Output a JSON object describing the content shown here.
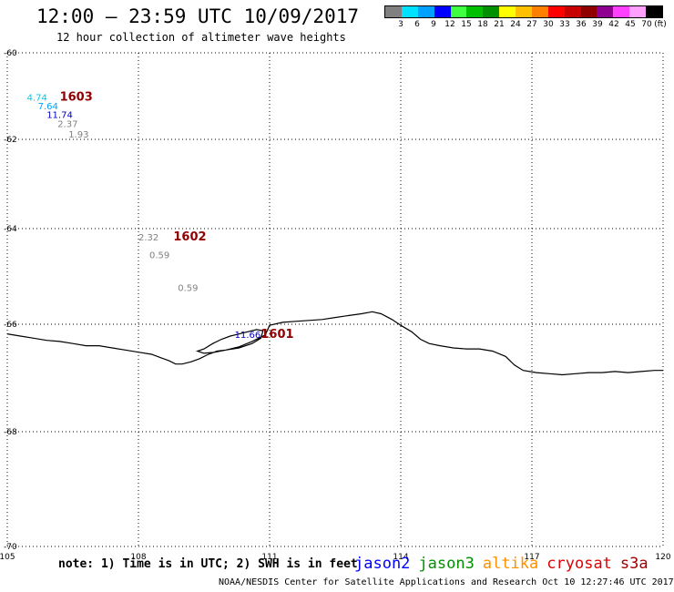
{
  "header": {
    "title": "12:00 – 23:59 UTC 10/09/2017",
    "subtitle": "12 hour collection of altimeter wave heights"
  },
  "legend": {
    "colors": [
      "#808080",
      "#00e0ff",
      "#00a0ff",
      "#0000ff",
      "#40ff40",
      "#00c000",
      "#009000",
      "#ffff00",
      "#ffc000",
      "#ff8000",
      "#ff0000",
      "#c80000",
      "#900000",
      "#900090",
      "#ff40ff",
      "#ffa0ff",
      "#000000"
    ],
    "labels": [
      "3",
      "6",
      "9",
      "12",
      "15",
      "18",
      "21",
      "24",
      "27",
      "30",
      "33",
      "36",
      "39",
      "42",
      "45",
      "70",
      "(ft)"
    ]
  },
  "map": {
    "x_ticks": [
      "105",
      "108",
      "111",
      "114",
      "117",
      "120"
    ],
    "y_ticks": [
      "-60",
      "-62",
      "-64",
      "-66",
      "-68",
      "-70"
    ],
    "passes": [
      {
        "label": "1603",
        "lon": 106.2,
        "lat": -61.1,
        "color": "#900000"
      },
      {
        "label": "1602",
        "lon": 108.8,
        "lat": -64.25,
        "color": "#900000"
      },
      {
        "label": "1601",
        "lon": 110.8,
        "lat": -66.25,
        "color": "#900000"
      }
    ],
    "wave_heights": [
      {
        "text": "4.74",
        "lon": 105.45,
        "lat": -61.1,
        "color": "#00c8e8"
      },
      {
        "text": "7.64",
        "lon": 105.7,
        "lat": -61.3,
        "color": "#00a0ff"
      },
      {
        "text": "11.74",
        "lon": 105.9,
        "lat": -61.5,
        "color": "#0000c8"
      },
      {
        "text": "2.37",
        "lon": 106.15,
        "lat": -61.72,
        "color": "#808080"
      },
      {
        "text": "1.93",
        "lon": 106.4,
        "lat": -61.96,
        "color": "#808080"
      },
      {
        "text": "2.32",
        "lon": 108.0,
        "lat": -64.25,
        "color": "#808080"
      },
      {
        "text": "0.59",
        "lon": 108.25,
        "lat": -64.62,
        "color": "#808080"
      },
      {
        "text": "0.59",
        "lon": 108.9,
        "lat": -65.3,
        "color": "#808080"
      },
      {
        "text": "11.66",
        "lon": 110.2,
        "lat": -66.25,
        "color": "#0000c8"
      }
    ],
    "coastline": [
      [
        105.0,
        -66.18
      ],
      [
        105.3,
        -66.22
      ],
      [
        105.6,
        -66.26
      ],
      [
        105.9,
        -66.3
      ],
      [
        106.2,
        -66.32
      ],
      [
        106.5,
        -66.36
      ],
      [
        106.8,
        -66.4
      ],
      [
        107.1,
        -66.4
      ],
      [
        107.4,
        -66.44
      ],
      [
        107.7,
        -66.48
      ],
      [
        108.0,
        -66.52
      ],
      [
        108.3,
        -66.56
      ],
      [
        108.5,
        -66.62
      ],
      [
        108.7,
        -66.68
      ],
      [
        108.85,
        -66.74
      ],
      [
        109.0,
        -66.74
      ],
      [
        109.2,
        -66.7
      ],
      [
        109.4,
        -66.64
      ],
      [
        109.6,
        -66.56
      ],
      [
        109.8,
        -66.5
      ],
      [
        110.0,
        -66.48
      ],
      [
        110.3,
        -66.44
      ],
      [
        110.6,
        -66.36
      ],
      [
        110.8,
        -66.26
      ],
      [
        110.85,
        -66.12
      ],
      [
        110.7,
        -66.1
      ],
      [
        110.4,
        -66.16
      ],
      [
        110.1,
        -66.22
      ],
      [
        109.9,
        -66.28
      ],
      [
        109.7,
        -66.36
      ],
      [
        109.5,
        -66.46
      ],
      [
        109.35,
        -66.5
      ],
      [
        109.5,
        -66.54
      ],
      [
        109.75,
        -66.52
      ],
      [
        110.0,
        -66.48
      ],
      [
        110.3,
        -66.42
      ],
      [
        110.6,
        -66.32
      ],
      [
        110.9,
        -66.2
      ],
      [
        111.0,
        -66.02
      ],
      [
        111.3,
        -65.96
      ],
      [
        111.6,
        -65.94
      ],
      [
        111.9,
        -65.92
      ],
      [
        112.2,
        -65.9
      ],
      [
        112.5,
        -65.86
      ],
      [
        112.8,
        -65.82
      ],
      [
        113.1,
        -65.78
      ],
      [
        113.35,
        -65.74
      ],
      [
        113.55,
        -65.78
      ],
      [
        113.8,
        -65.9
      ],
      [
        114.0,
        -66.02
      ],
      [
        114.25,
        -66.14
      ],
      [
        114.45,
        -66.28
      ],
      [
        114.65,
        -66.36
      ],
      [
        114.9,
        -66.4
      ],
      [
        115.2,
        -66.44
      ],
      [
        115.5,
        -66.46
      ],
      [
        115.8,
        -66.46
      ],
      [
        116.1,
        -66.5
      ],
      [
        116.4,
        -66.6
      ],
      [
        116.6,
        -66.76
      ],
      [
        116.8,
        -66.86
      ],
      [
        117.1,
        -66.9
      ],
      [
        117.4,
        -66.92
      ],
      [
        117.7,
        -66.94
      ],
      [
        118.0,
        -66.92
      ],
      [
        118.3,
        -66.9
      ],
      [
        118.6,
        -66.9
      ],
      [
        118.9,
        -66.88
      ],
      [
        119.2,
        -66.9
      ],
      [
        119.5,
        -66.88
      ],
      [
        119.8,
        -66.86
      ],
      [
        120.0,
        -66.86
      ]
    ]
  },
  "note": "note: 1) Time is in UTC; 2) SWH is in feet",
  "missions": [
    {
      "text": "jason2",
      "color": "#0000ff"
    },
    {
      "text": "jason3",
      "color": "#009000"
    },
    {
      "text": "altika",
      "color": "#ff9000"
    },
    {
      "text": "cryosat",
      "color": "#e00000"
    },
    {
      "text": "s3a",
      "color": "#a00000"
    }
  ],
  "footer": "NOAA/NESDIS Center for Satellite Applications and Research   Oct 10 12:27:46 UTC 2017"
}
